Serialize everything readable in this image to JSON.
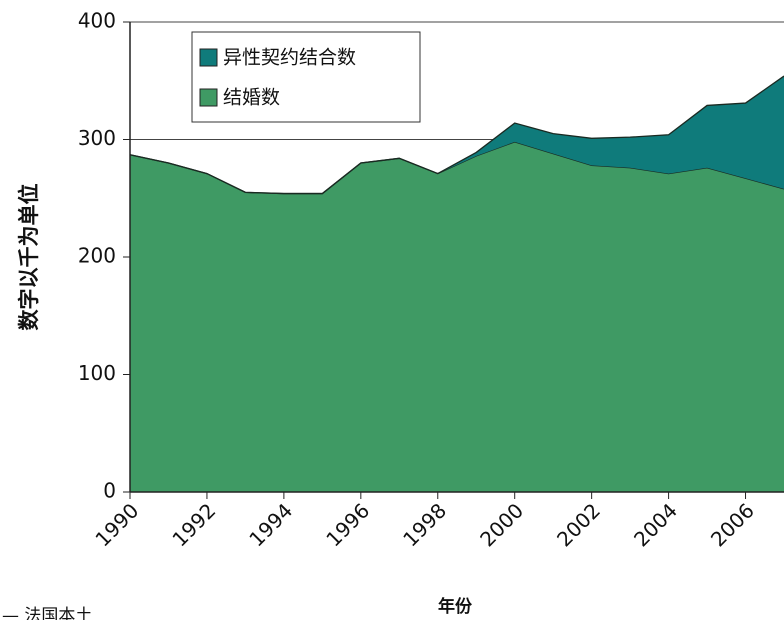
{
  "chart_data": {
    "type": "stacked_area",
    "y_label": "数字以千为单位",
    "x_label": "年份",
    "source": "— 法国本土",
    "x": [
      1990,
      1991,
      1992,
      1993,
      1994,
      1995,
      1996,
      1997,
      1998,
      1999,
      2000,
      2001,
      2002,
      2003,
      2004,
      2005,
      2006,
      2007
    ],
    "series": [
      {
        "name": "结婚数",
        "color": "#3f9a64",
        "values": [
          287,
          280,
          271,
          255,
          254,
          254,
          280,
          284,
          271,
          286,
          298,
          288,
          278,
          276,
          271,
          276,
          267,
          258
        ]
      },
      {
        "name": "异性契约结合数",
        "color": "#0f7b7b",
        "values": [
          0,
          0,
          0,
          0,
          0,
          0,
          0,
          0,
          0,
          3,
          16,
          17,
          23,
          26,
          33,
          53,
          64,
          96
        ]
      }
    ],
    "legend_order": [
      1,
      0
    ],
    "xlim": [
      1990,
      2007
    ],
    "xticks": [
      1990,
      1992,
      1994,
      1996,
      1998,
      2000,
      2002,
      2004,
      2006
    ],
    "ylim": [
      0,
      400
    ],
    "yticks": [
      0,
      100,
      200,
      300,
      400
    ],
    "grid": true
  }
}
